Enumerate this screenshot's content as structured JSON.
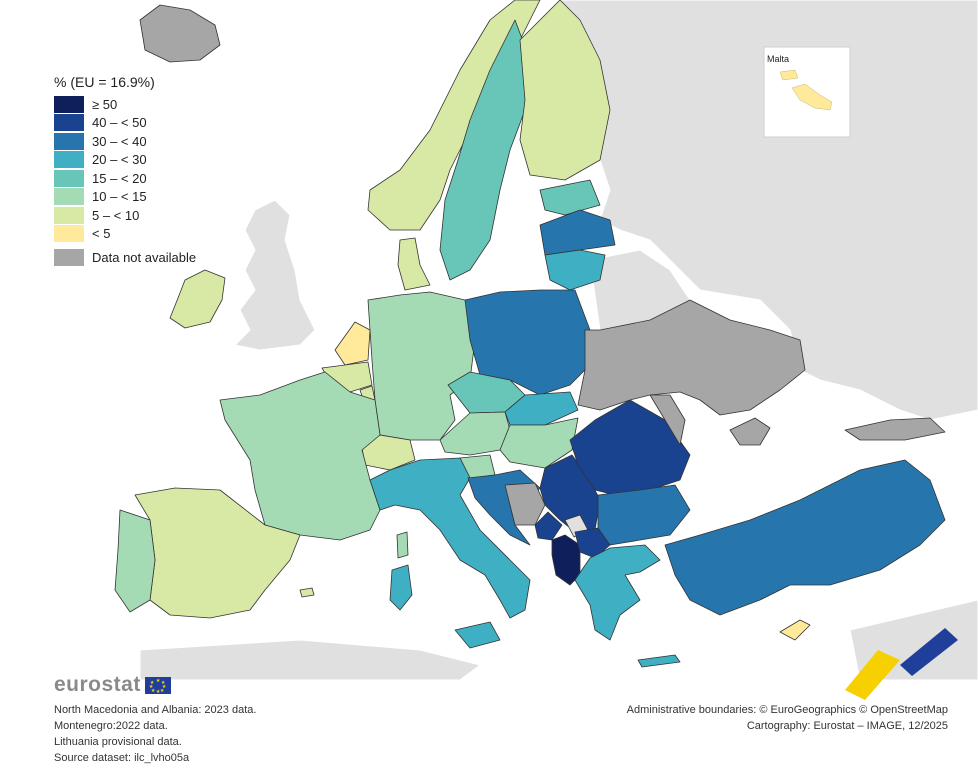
{
  "legend": {
    "title": "% (EU = 16.9%)",
    "items": [
      {
        "label": "≥ 50",
        "color": "#0f1f5c"
      },
      {
        "label": "40 – < 50",
        "color": "#1a438f"
      },
      {
        "label": "30 – < 40",
        "color": "#2676ad"
      },
      {
        "label": "20 – < 30",
        "color": "#3fb0c4"
      },
      {
        "label": "15 – < 20",
        "color": "#67c6b8"
      },
      {
        "label": "10 – < 15",
        "color": "#a5dbb4"
      },
      {
        "label": "5 – < 10",
        "color": "#d8e9a6"
      },
      {
        "label": "< 5",
        "color": "#ffe99a"
      }
    ],
    "na_label": "Data not available",
    "na_color": "#a6a6a6"
  },
  "inset": {
    "label": "Malta"
  },
  "logo": {
    "text": "eurostat"
  },
  "notes": [
    "North Macedonia and Albania: 2023 data.",
    "Montenegro:2022 data.",
    "Lithuania provisional data.",
    "Source dataset: ilc_lvho05a"
  ],
  "credits": [
    "Administrative boundaries: © EuroGeographics © OpenStreetMap",
    "Cartography: Eurostat – IMAGE, 12/2025"
  ],
  "colors": {
    "sea": "#ffffff",
    "non_eu_land": "#e0e0e0",
    "border": "#333333"
  }
}
